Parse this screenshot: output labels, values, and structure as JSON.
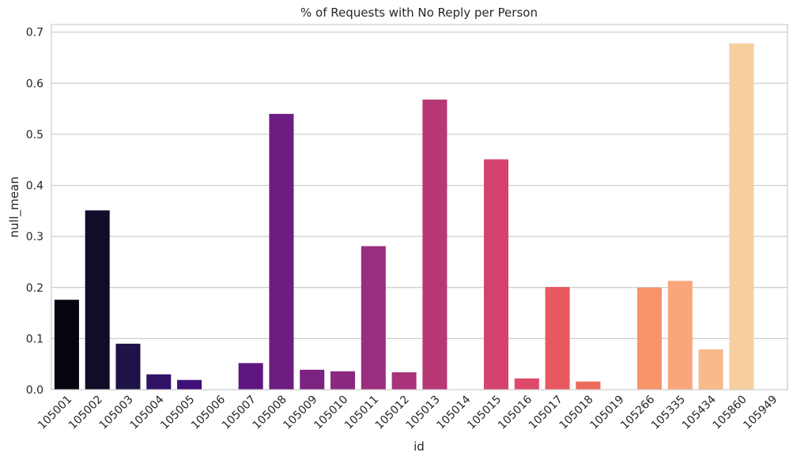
{
  "chart_data": {
    "type": "bar",
    "title": "% of Requests with No Reply per Person",
    "xlabel": "id",
    "ylabel": "null_mean",
    "ylim": [
      0,
      0.715
    ],
    "yticks": [
      "0.0",
      "0.1",
      "0.2",
      "0.3",
      "0.4",
      "0.5",
      "0.6",
      "0.7"
    ],
    "grid": "horizontal",
    "categories": [
      "105001",
      "105002",
      "105003",
      "105004",
      "105005",
      "105006",
      "105007",
      "105008",
      "105009",
      "105010",
      "105011",
      "105012",
      "105013",
      "105014",
      "105015",
      "105016",
      "105017",
      "105018",
      "105019",
      "105266",
      "105335",
      "105434",
      "105860",
      "105949"
    ],
    "values": [
      0.176,
      0.351,
      0.09,
      0.03,
      0.019,
      0.0,
      0.052,
      0.54,
      0.039,
      0.036,
      0.281,
      0.034,
      0.568,
      0.0,
      0.451,
      0.022,
      0.201,
      0.016,
      0.0,
      0.2,
      0.213,
      0.079,
      0.678,
      0.0
    ],
    "colors": [
      "#05040f",
      "#120c28",
      "#1f1246",
      "#2f1266",
      "#401079",
      "#4f127b",
      "#5e177f",
      "#6d1d81",
      "#7c2382",
      "#8b2981",
      "#9a2e7e",
      "#a9327a",
      "#b83775",
      "#c73d73",
      "#d3436e",
      "#de4968",
      "#e8595f",
      "#ee6a5d",
      "#f37b5c",
      "#f79468",
      "#f9a67b",
      "#f8ba8c",
      "#f7cf9f",
      "#fbe2b4"
    ]
  }
}
